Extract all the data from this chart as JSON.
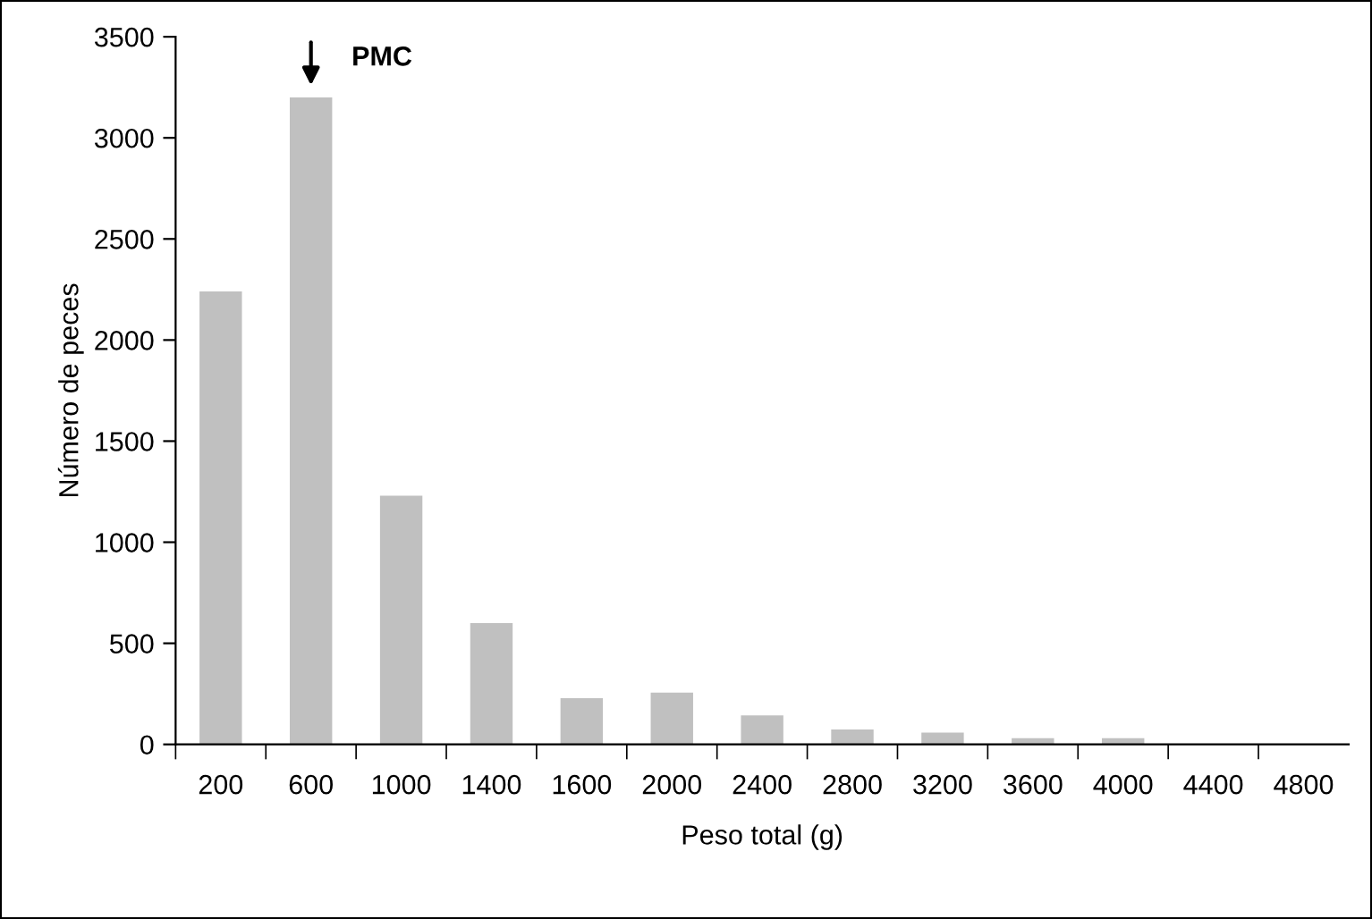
{
  "chart_data": {
    "type": "bar",
    "xlabel": "Peso total (g)",
    "ylabel": "Número de peces",
    "categories": [
      "200",
      "600",
      "1000",
      "1400",
      "1600",
      "2000",
      "2400",
      "2800",
      "3200",
      "3600",
      "4000",
      "4400",
      "4800"
    ],
    "values": [
      2240,
      3200,
      1230,
      600,
      229,
      256,
      143,
      74,
      58,
      31,
      31,
      0,
      0
    ],
    "color": "#c0c0c0",
    "ylim": [
      0,
      3500
    ],
    "yticks": [
      0,
      500,
      1000,
      1500,
      2000,
      2500,
      3000,
      3500
    ],
    "grid": false,
    "annotations": [
      {
        "text": "PMC",
        "x": "600",
        "y": 3200
      }
    ]
  }
}
